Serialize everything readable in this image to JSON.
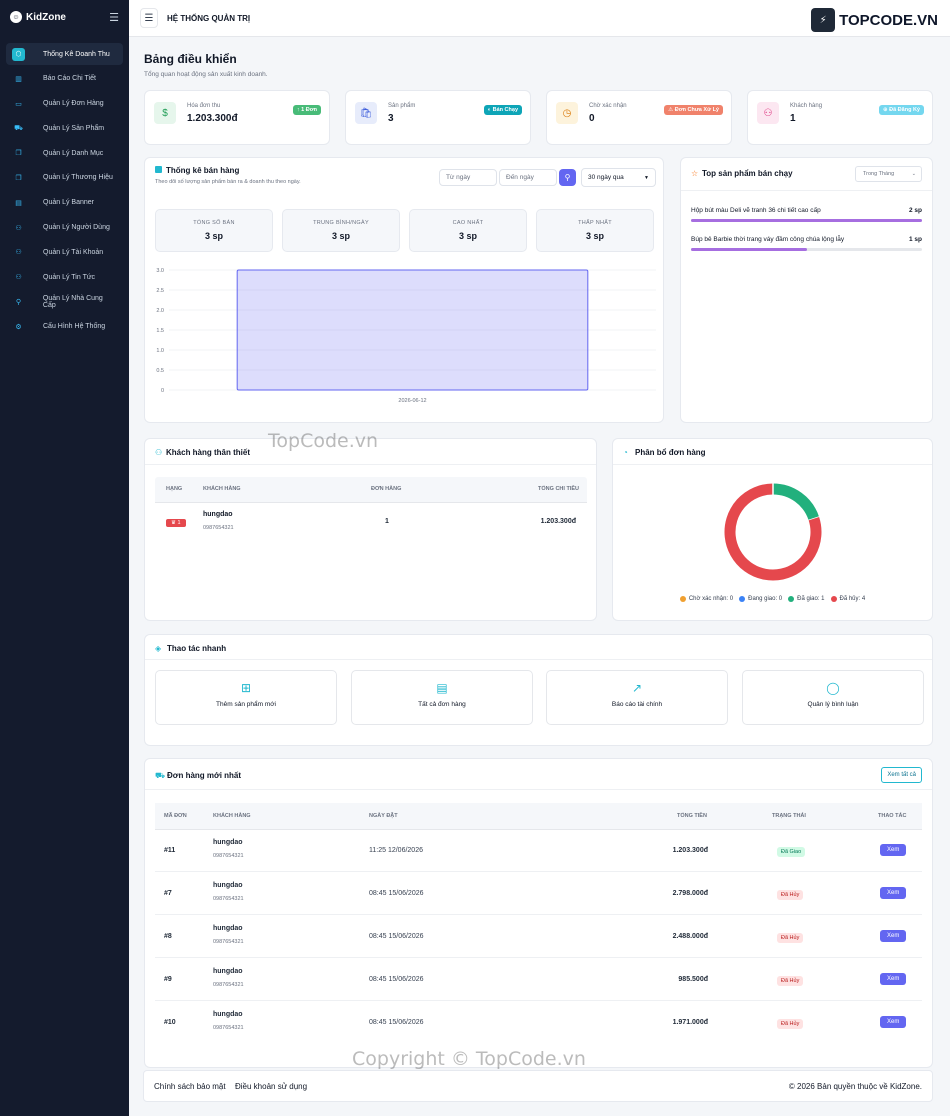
{
  "brand": {
    "name": "KidZone"
  },
  "sidebar": {
    "items": [
      {
        "label": "Thống Kê Doanh Thu",
        "icon": "box-icon",
        "glyph": "⬡",
        "active": true
      },
      {
        "label": "Báo Cáo Chi Tiết",
        "icon": "chart-icon",
        "glyph": "▥"
      },
      {
        "label": "Quản Lý Đơn Hàng",
        "icon": "card-icon",
        "glyph": "▭"
      },
      {
        "label": "Quản Lý Sản Phẩm",
        "icon": "cart-icon",
        "glyph": "⛟"
      },
      {
        "label": "Quản Lý Danh Mục",
        "icon": "copy-icon",
        "glyph": "❐"
      },
      {
        "label": "Quản Lý Thương Hiệu",
        "icon": "copy-icon",
        "glyph": "❐"
      },
      {
        "label": "Quản Lý Banner",
        "icon": "file-icon",
        "glyph": "▤"
      },
      {
        "label": "Quản Lý Người Dùng",
        "icon": "users-icon",
        "glyph": "⚇"
      },
      {
        "label": "Quản Lý Tài Khoản",
        "icon": "users-icon",
        "glyph": "⚇"
      },
      {
        "label": "Quản Lý Tin Tức",
        "icon": "users-icon",
        "glyph": "⚇"
      },
      {
        "label": "Quản Lý Nhà Cung Cấp",
        "icon": "user-icon",
        "glyph": "⚲"
      },
      {
        "label": "Cấu Hình Hệ Thống",
        "icon": "gear-icon",
        "glyph": "⚙"
      }
    ]
  },
  "topbar": {
    "title": "HỆ THỐNG QUẢN TRỊ",
    "watermark": "TOPCODE.VN"
  },
  "page": {
    "title": "Bảng điều khiển",
    "subtitle": "Tổng quan hoạt động sản xuất kinh doanh."
  },
  "stats": [
    {
      "label": "Hóa đơn thu",
      "value": "1.203.300đ",
      "badge": "↑ 1 Đơn",
      "color": "#1f9d55",
      "badge_color": "#48bb78",
      "icon_bg": "#e6f6ec",
      "glyph": "$"
    },
    {
      "label": "Sản phẩm",
      "value": "3",
      "badge": "◐ Bán Chạy",
      "color": "#3b5bdb",
      "badge_color": "#0ea5b7",
      "icon_bg": "#e7ecfb",
      "glyph": "🛍"
    },
    {
      "label": "Chờ xác nhận",
      "value": "0",
      "badge": "⚠ Đơn Chưa Xử Lý",
      "color": "#d97706",
      "badge_color": "#f0826b",
      "icon_bg": "#fdf3dc",
      "glyph": "◷"
    },
    {
      "label": "Khách hàng",
      "value": "1",
      "badge": "⊕ Đã Đăng Ký",
      "color": "#db2777",
      "badge_color": "#74d7ef",
      "icon_bg": "#fce7f1",
      "glyph": "⚇"
    }
  ],
  "sales": {
    "title": "Thống kê bán hàng",
    "subtitle": "Theo dõi số lượng sản phẩm bán ra & doanh thu theo ngày.",
    "from_placeholder": "Từ ngày",
    "to_placeholder": "Đến ngày",
    "range": "30 ngày qua",
    "mini": [
      {
        "label": "TỔNG SỐ BÁN",
        "value": "3 sp"
      },
      {
        "label": "TRUNG BÌNH/NGÀY",
        "value": "3 sp"
      },
      {
        "label": "CAO NHẤT",
        "value": "3 sp"
      },
      {
        "label": "THẤP NHẤT",
        "value": "3 sp"
      }
    ]
  },
  "chart_data": [
    {
      "type": "bar",
      "categories": [
        "2026-06-12"
      ],
      "values": [
        3
      ],
      "ylim": [
        0,
        3
      ],
      "yticks": [
        "0",
        "0.5",
        "1.0",
        "1.5",
        "2.0",
        "2.5",
        "3.0"
      ],
      "grid": true,
      "color": "#6366f1"
    },
    {
      "type": "pie",
      "categories": [
        "Chờ xác nhận",
        "Đang giao",
        "Đã giao",
        "Đã hủy"
      ],
      "values": [
        0,
        0,
        1,
        4
      ],
      "colors": [
        "#f0a030",
        "#3b82f6",
        "#22b07d",
        "#e5484d"
      ],
      "legend": "bottom"
    }
  ],
  "top_products": {
    "title": "Top sản phẩm bán chạy",
    "filter": "Trong Tháng",
    "items": [
      {
        "name": "Hộp bút màu Deli vẽ tranh 36 chi tiết cao cấp",
        "qty": "2 sp",
        "ratio": 1.0
      },
      {
        "name": "Búp bê Barbie thời trang váy đầm công chúa lộng lẫy",
        "qty": "1 sp",
        "ratio": 0.5
      }
    ]
  },
  "loyal": {
    "title": "Khách hàng thân thiết",
    "headers": [
      "HẠNG",
      "KHÁCH HÀNG",
      "ĐƠN HÀNG",
      "TỔNG CHI TIÊU"
    ],
    "rows": [
      {
        "rank": "♛ 1",
        "name": "hungdao",
        "phone": "0987654321",
        "orders": "1",
        "total": "1.203.300đ"
      }
    ]
  },
  "distribution": {
    "title": "Phân bổ đơn hàng",
    "legend": [
      "Chờ xác nhận: 0",
      "Đang giao: 0",
      "Đã giao: 1",
      "Đã hủy: 4"
    ]
  },
  "quick": {
    "title": "Thao tác nhanh",
    "items": [
      {
        "label": "Thêm sản phẩm mới",
        "glyph": "⊞",
        "name": "add-product-icon"
      },
      {
        "label": "Tất cả đơn hàng",
        "glyph": "▤",
        "name": "orders-icon"
      },
      {
        "label": "Báo cáo tài chính",
        "glyph": "↗",
        "name": "report-icon"
      },
      {
        "label": "Quản lý bình luận",
        "glyph": "◯",
        "name": "comment-icon"
      }
    ]
  },
  "orders": {
    "title": "Đơn hàng mới nhất",
    "view_all": "Xem tất cả",
    "headers": [
      "MÃ ĐƠN",
      "KHÁCH HÀNG",
      "NGÀY ĐẶT",
      "TỔNG TIỀN",
      "TRẠNG THÁI",
      "THAO TÁC"
    ],
    "action": "Xem",
    "rows": [
      {
        "id": "#11",
        "name": "hungdao",
        "phone": "0987654321",
        "date": "11:25 12/06/2026",
        "total": "1.203.300đ",
        "status": "Đã Giao",
        "kind": "done"
      },
      {
        "id": "#7",
        "name": "hungdao",
        "phone": "0987654321",
        "date": "08:45 15/06/2026",
        "total": "2.798.000đ",
        "status": "Đã Hủy",
        "kind": "cancel"
      },
      {
        "id": "#8",
        "name": "hungdao",
        "phone": "0987654321",
        "date": "08:45 15/06/2026",
        "total": "2.488.000đ",
        "status": "Đã Hủy",
        "kind": "cancel"
      },
      {
        "id": "#9",
        "name": "hungdao",
        "phone": "0987654321",
        "date": "08:45 15/06/2026",
        "total": "985.500đ",
        "status": "Đã Hủy",
        "kind": "cancel"
      },
      {
        "id": "#10",
        "name": "hungdao",
        "phone": "0987654321",
        "date": "08:45 15/06/2026",
        "total": "1.971.000đ",
        "status": "Đã Hủy",
        "kind": "cancel"
      }
    ]
  },
  "footer": {
    "privacy": "Chính sách bảo mật",
    "terms": "Điều khoản sử dụng",
    "copyright": "© 2026 Bản quyền thuộc về KidZone."
  },
  "watermarks": {
    "mid": "TopCode.vn",
    "bottom": "Copyright © TopCode.vn"
  }
}
